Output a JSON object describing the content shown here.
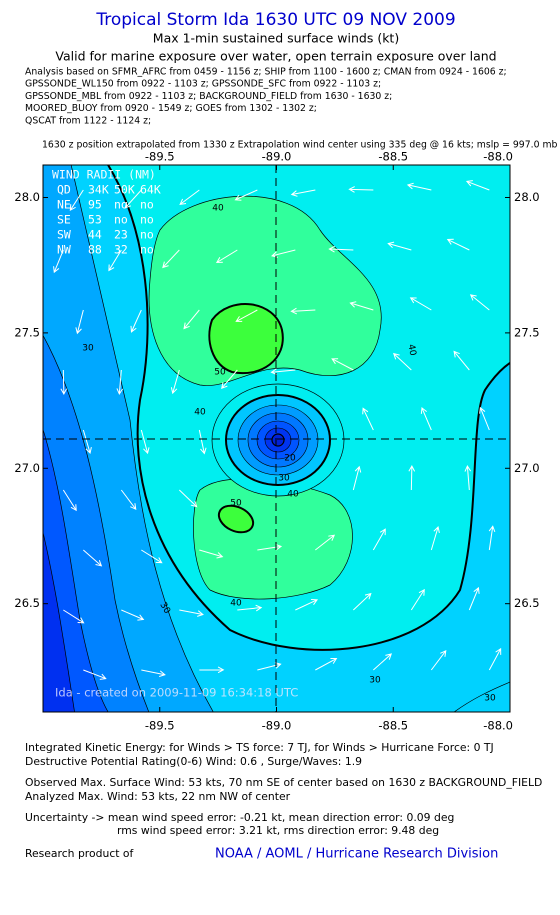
{
  "header": {
    "title": "Tropical Storm Ida 1630 UTC 09 NOV 2009",
    "subtitle": "Max 1-min sustained surface winds (kt)",
    "valid": "Valid for marine exposure over water, open terrain exposure over land",
    "analysis": [
      "Analysis based on   SFMR_AFRC from 0459 - 1156 z;  SHIP from 1100 - 1600 z;  CMAN from 0924 - 1606 z;",
      "GPSSONDE_WL150 from 0922 - 1103 z;  GPSSONDE_SFC from 0922 - 1103 z;",
      "GPSSONDE_MBL from 0922 - 1103 z;  BACKGROUND_FIELD from 1630 - 1630 z;",
      "MOORED_BUOY from 0920 - 1549 z;  GOES from 1302 - 1302 z;",
      "QSCAT from 1122 - 1124 z;"
    ],
    "position_note": "1630 z position extrapolated from 1330 z Extrapolation wind center using 335 deg @ 16 kts; mslp = 997.0 mb"
  },
  "map": {
    "type": "map",
    "xlim": [
      -90,
      -88
    ],
    "ylim": [
      26.1,
      28.12
    ],
    "xticks": [
      -89.5,
      {
        "value": -89,
        "label": "-89.0"
      },
      -88.5,
      {
        "value": -88,
        "label": "-88.0"
      }
    ],
    "yticks": [
      {
        "value": 28,
        "label": "28.0"
      },
      27.5,
      {
        "value": 27,
        "label": "27.0"
      },
      26.5
    ],
    "wind_radii": {
      "title": "WIND RADII (NM)",
      "header": [
        "QD",
        "34K",
        "50K",
        "64K"
      ],
      "rows": [
        [
          "NE",
          95,
          "no",
          "no"
        ],
        [
          "SE",
          53,
          "no",
          "no"
        ],
        [
          "SW",
          44,
          23,
          "no"
        ],
        [
          "NW",
          88,
          32,
          "no"
        ]
      ]
    },
    "contour_labels": [
      40,
      30,
      50,
      40,
      20,
      30,
      40,
      50,
      30,
      40,
      40,
      30,
      30
    ],
    "credit": "Ida - created on 2009-11-09 16:34:18 UTC"
  },
  "footer": {
    "ike": "Integrated Kinetic Energy:  for Winds > TS force: 7 TJ,  for Winds > Hurricane Force: 0 TJ",
    "dpr": "Destructive Potential Rating(0-6)   Wind: 0.6 , Surge/Waves: 1.9",
    "observed": "Observed Max. Surface Wind: 53 kts, 70 nm SE of center based on 1630 z BACKGROUND_FIELD",
    "analyzed": "Analyzed Max. Wind: 53 kts, 22 nm NW of center",
    "uncertainty": "Uncertainty -> mean wind speed error:  -0.21 kt,   mean direction error: 0.09 deg",
    "rms": "rms wind speed error: 3.21 kt,   rms direction error: 9.48 deg",
    "research": "Research product of",
    "org": "NOAA / AOML / Hurricane Research Division"
  }
}
